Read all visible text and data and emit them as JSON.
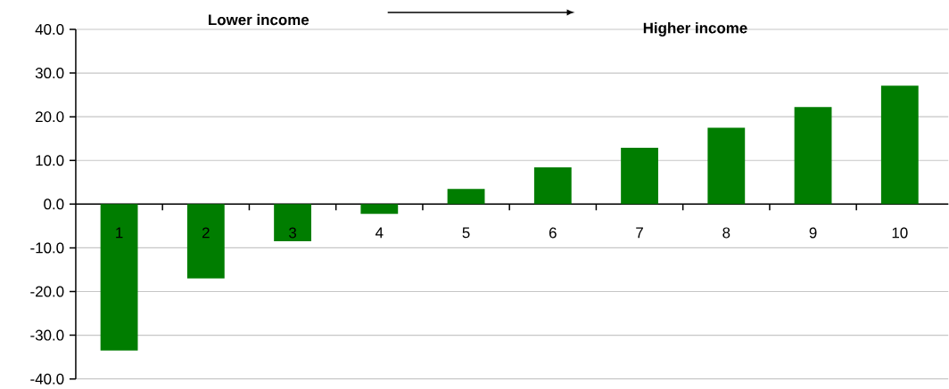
{
  "chart_data": {
    "type": "bar",
    "categories": [
      "1",
      "2",
      "3",
      "4",
      "5",
      "6",
      "7",
      "8",
      "9",
      "10"
    ],
    "values": [
      -33.5,
      -17.0,
      -8.5,
      -2.2,
      3.5,
      8.4,
      12.9,
      17.5,
      22.2,
      27.1
    ],
    "color": "#007d00",
    "ylim": [
      -40,
      40
    ],
    "yticks": [
      {
        "value": -40,
        "label": "-40.0"
      },
      {
        "value": -30,
        "label": "-30.0"
      },
      {
        "value": -20,
        "label": "-20.0"
      },
      {
        "value": -10,
        "label": "-10.0"
      },
      {
        "value": 0,
        "label": "0.0"
      },
      {
        "value": 10,
        "label": "10.0"
      },
      {
        "value": 20,
        "label": "20.0"
      },
      {
        "value": 30,
        "label": "30.0"
      },
      {
        "value": 40,
        "label": "40.0"
      }
    ],
    "grid": "y",
    "annotations": [
      "Lower income",
      "Higher income"
    ]
  }
}
